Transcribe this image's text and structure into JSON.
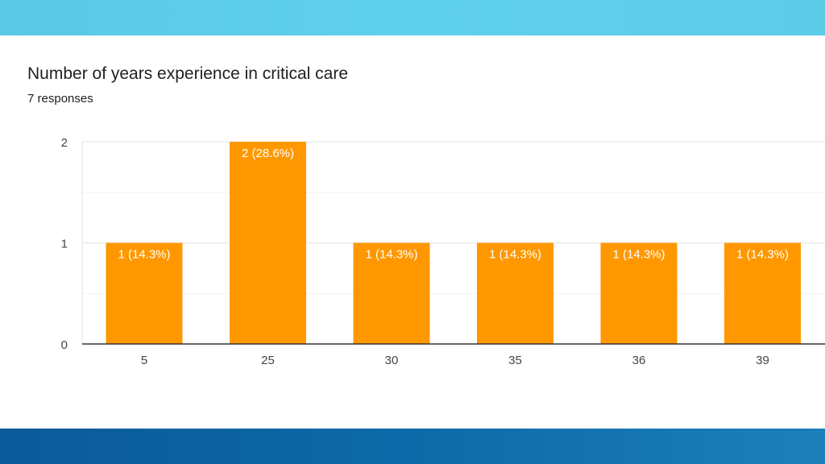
{
  "colors": {
    "top_band": "#5ccbe8",
    "bottom_band": "#0d6aa8",
    "bar": "#ff9800",
    "bar_label": "#ffffff"
  },
  "question": {
    "title": "Number of years experience in critical care",
    "responses": "7 responses"
  },
  "chart_data": {
    "type": "bar",
    "categories": [
      "5",
      "25",
      "30",
      "35",
      "36",
      "39"
    ],
    "values": [
      1,
      2,
      1,
      1,
      1,
      1
    ],
    "data_labels": [
      "1 (14.3%)",
      "2 (28.6%)",
      "1 (14.3%)",
      "1 (14.3%)",
      "1 (14.3%)",
      "1 (14.3%)"
    ],
    "y_ticks": [
      "0",
      "1",
      "2"
    ],
    "ylim": [
      0,
      2
    ],
    "grid": true
  }
}
